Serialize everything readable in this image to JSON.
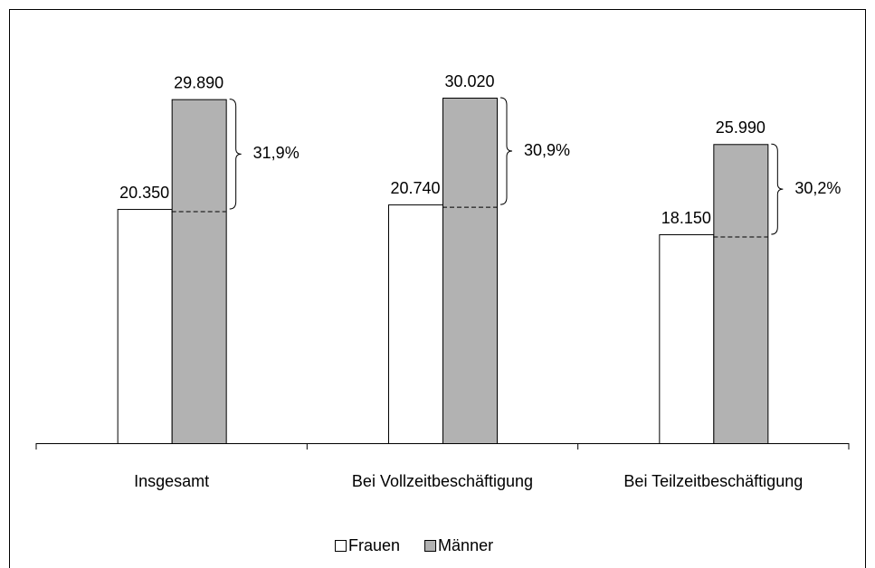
{
  "chart_data": {
    "type": "bar",
    "categories": [
      "Insgesamt",
      "Bei Vollzeitbeschäftigung",
      "Bei Teilzeitbeschäftigung"
    ],
    "series": [
      {
        "name": "Frauen",
        "color": "#ffffff",
        "values": [
          20350,
          20740,
          18150
        ],
        "value_labels": [
          "20.350",
          "20.740",
          "18.150"
        ]
      },
      {
        "name": "Männer",
        "color": "#b2b2b2",
        "values": [
          29890,
          30020,
          25990
        ],
        "value_labels": [
          "29.890",
          "30.020",
          "25.990"
        ]
      }
    ],
    "gaps": {
      "values": [
        31.9,
        30.9,
        30.2
      ],
      "value_labels": [
        "31,9%",
        "30,9%",
        "30,2%"
      ]
    },
    "legend": "bottom"
  }
}
